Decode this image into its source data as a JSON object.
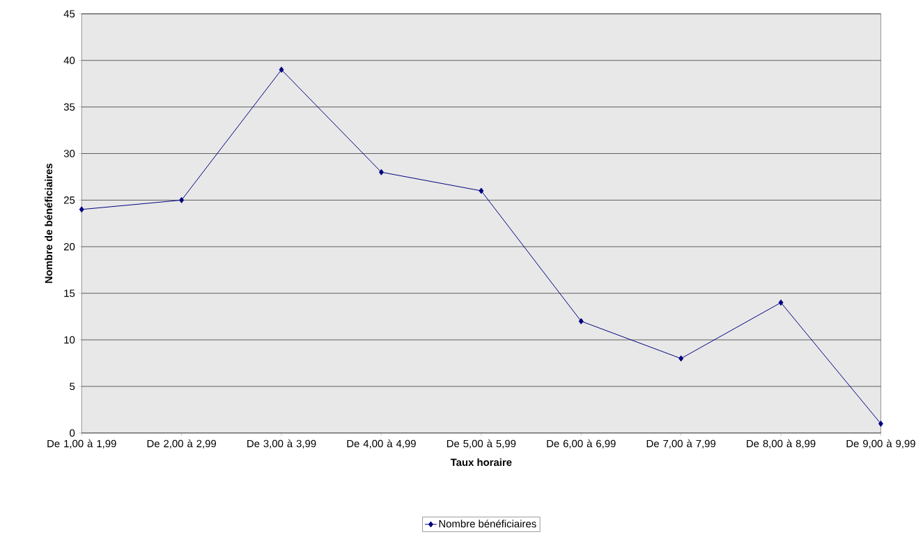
{
  "chart_data": {
    "type": "line",
    "xlabel": "Taux horaire",
    "ylabel": "Nombre de bénéficiaires",
    "categories": [
      "De 1,00 à 1,99",
      "De 2,00 à 2,99",
      "De 3,00 à 3,99",
      "De 4,00 à 4,99",
      "De 5,00 à 5,99",
      "De 6,00 à 6,99",
      "De 7,00 à 7,99",
      "De 8,00 à 8,99",
      "De 9,00 à 9,99"
    ],
    "series": [
      {
        "name": "Nombre bénéficiaires",
        "color": "#000080",
        "values": [
          24,
          25,
          39,
          28,
          26,
          12,
          8,
          14,
          1
        ]
      }
    ],
    "ylim": [
      0,
      45
    ],
    "yticks": [
      0,
      5,
      10,
      15,
      20,
      25,
      30,
      35,
      40,
      45
    ],
    "grid": "y",
    "legend": "bottom",
    "marker": "diamond",
    "line_style": "solid"
  }
}
